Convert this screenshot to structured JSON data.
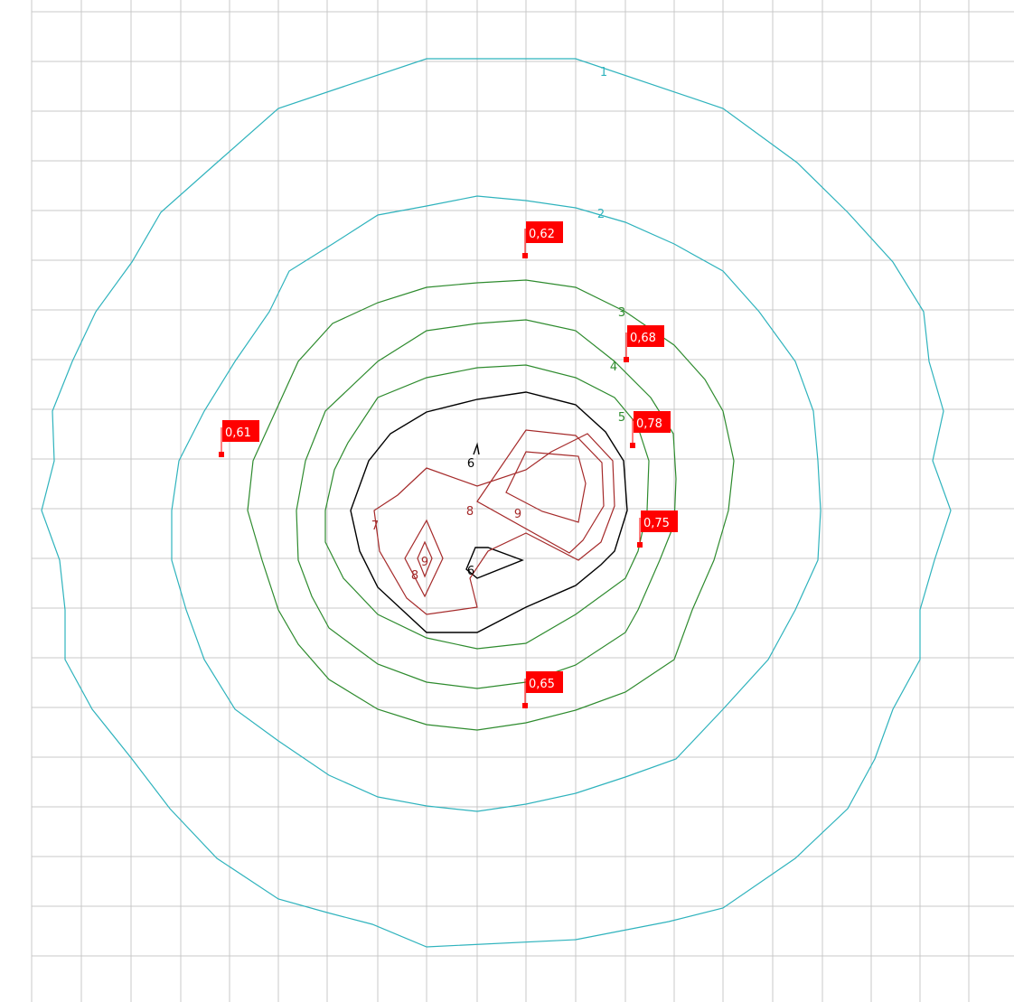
{
  "chart_data": {
    "type": "contour",
    "title": "",
    "xlabel": "",
    "ylabel": "",
    "grid": true,
    "colors": {
      "background": "#ffffff",
      "grid": "#c8c8c8",
      "level_1_2": "#2fb3bd",
      "level_3_4_5": "#2e8b2e",
      "level_6": "#000000",
      "level_7_8_9": "#a52a2a",
      "marker": "#ff0000",
      "marker_text": "#ffffff"
    },
    "contour_labels": [
      {
        "text": "1",
        "color_key": "level_1_2"
      },
      {
        "text": "2",
        "color_key": "level_1_2"
      },
      {
        "text": "3",
        "color_key": "level_3_4_5"
      },
      {
        "text": "4",
        "color_key": "level_3_4_5"
      },
      {
        "text": "5",
        "color_key": "level_3_4_5"
      },
      {
        "text": "6",
        "color_key": "level_6"
      },
      {
        "text": "6",
        "color_key": "level_6"
      },
      {
        "text": "7",
        "color_key": "level_7_8_9"
      },
      {
        "text": "8",
        "color_key": "level_7_8_9"
      },
      {
        "text": "8",
        "color_key": "level_7_8_9"
      },
      {
        "text": "9",
        "color_key": "level_7_8_9"
      },
      {
        "text": "9",
        "color_key": "level_7_8_9"
      }
    ],
    "measurement_points": [
      {
        "value": "0,62"
      },
      {
        "value": "0,68"
      },
      {
        "value": "0,78"
      },
      {
        "value": "0,61"
      },
      {
        "value": "0,75"
      },
      {
        "value": "0,65"
      }
    ]
  }
}
